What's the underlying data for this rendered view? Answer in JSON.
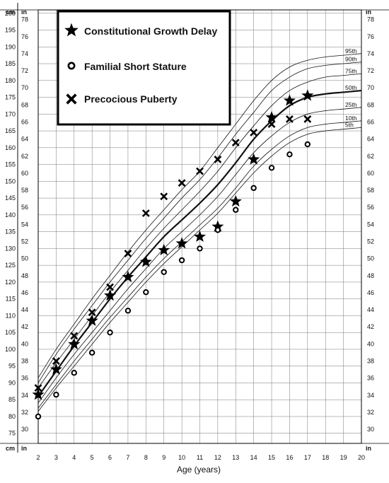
{
  "chart_data": {
    "type": "scatter",
    "xlabel": "Age (years)",
    "x_ticks": [
      2,
      3,
      4,
      5,
      6,
      7,
      8,
      9,
      10,
      11,
      12,
      13,
      14,
      15,
      16,
      17,
      18,
      19,
      20
    ],
    "xlim": [
      2,
      20
    ],
    "ylim_cm": [
      72,
      201
    ],
    "left_unit_top": "cm",
    "left_unit2_top": "in",
    "left_unit_bottom": "cm",
    "left_unit2_bottom": "in",
    "right_unit_top": "in",
    "right_unit_bottom": "in",
    "cm_ticks": [
      75,
      80,
      85,
      90,
      95,
      100,
      105,
      110,
      115,
      120,
      125,
      130,
      135,
      140,
      145,
      150,
      155,
      160,
      165,
      170,
      175,
      180,
      185,
      190,
      195,
      200
    ],
    "in_ticks": [
      30,
      32,
      34,
      36,
      38,
      40,
      42,
      44,
      46,
      48,
      50,
      52,
      54,
      56,
      58,
      60,
      62,
      64,
      66,
      68,
      70,
      72,
      74,
      76,
      78
    ],
    "grid": true,
    "legend_position": "top-left",
    "legend": [
      {
        "label": "Constitutional Growth Delay",
        "marker": "star"
      },
      {
        "label": "Familial Short Stature",
        "marker": "circle"
      },
      {
        "label": "Precocious Puberty",
        "marker": "x"
      }
    ],
    "percentiles": [
      {
        "label": "95th",
        "y": [
          91.5,
          100,
          107.5,
          115,
          122,
          129,
          135.5,
          141.5,
          147.5,
          153,
          160,
          167,
          174,
          180,
          184,
          186,
          187,
          187.5,
          188
        ]
      },
      {
        "label": "90th",
        "y": [
          90,
          98.5,
          106,
          113,
          120,
          126.5,
          133,
          139,
          145,
          150.5,
          157,
          164,
          170.5,
          177,
          181,
          183.5,
          184.5,
          185,
          185.5
        ]
      },
      {
        "label": "75th",
        "y": [
          88.5,
          96,
          103,
          110,
          117,
          123.5,
          130,
          136,
          141.5,
          147,
          153,
          160,
          166.5,
          172.5,
          177,
          179.5,
          181,
          181.5,
          182
        ]
      },
      {
        "label": "50th",
        "y": [
          86,
          93.5,
          101,
          108,
          115,
          121.5,
          127.5,
          133.5,
          138.5,
          143.5,
          149,
          155.5,
          162.5,
          168,
          172.5,
          175,
          176,
          176.5,
          177
        ]
      },
      {
        "label": "25th",
        "y": [
          84,
          91.5,
          98.5,
          105,
          111.5,
          118,
          124,
          130,
          135,
          140,
          145.5,
          152,
          158.5,
          163.5,
          167.5,
          170,
          171,
          171.5,
          172
        ]
      },
      {
        "label": "10th",
        "y": [
          82.5,
          89.5,
          96.5,
          103,
          109.5,
          115.5,
          121.5,
          127,
          132,
          137,
          142,
          148,
          154.5,
          159.5,
          163.5,
          166,
          167,
          167.5,
          168
        ]
      },
      {
        "label": "5th",
        "y": [
          81.5,
          88.5,
          95,
          101.5,
          108,
          114,
          120,
          125.5,
          130.5,
          135.5,
          140.5,
          146.5,
          152.5,
          157.5,
          161.5,
          164,
          165,
          165.5,
          166
        ]
      }
    ],
    "series": [
      {
        "name": "Constitutional Growth Delay",
        "marker": "star",
        "x": [
          2,
          3,
          4,
          5,
          6,
          7,
          8,
          9,
          10,
          11,
          12,
          13,
          14,
          15,
          16,
          17
        ],
        "y": [
          86.5,
          94,
          101.5,
          108.5,
          116,
          121.5,
          126,
          129.5,
          131.5,
          133.5,
          136.5,
          144,
          156.5,
          169,
          174,
          175.5
        ]
      },
      {
        "name": "Familial Short Stature",
        "marker": "circle",
        "x": [
          2,
          3,
          4,
          5,
          6,
          7,
          8,
          9,
          10,
          11,
          12,
          13,
          14,
          15,
          16,
          17
        ],
        "y": [
          80,
          86.5,
          93,
          99,
          105,
          111.5,
          117,
          123,
          126.5,
          130,
          135.5,
          141.5,
          148,
          154,
          158,
          161
        ]
      },
      {
        "name": "Precocious Puberty",
        "marker": "x",
        "x": [
          2,
          3,
          4,
          5,
          6,
          7,
          8,
          9,
          10,
          11,
          12,
          13,
          14,
          15,
          16,
          17
        ],
        "y": [
          88.5,
          96.5,
          104,
          111,
          118.5,
          128.5,
          140.5,
          145.5,
          149.5,
          153,
          156.5,
          161.5,
          164.5,
          167,
          168.5,
          168.5
        ]
      }
    ]
  }
}
